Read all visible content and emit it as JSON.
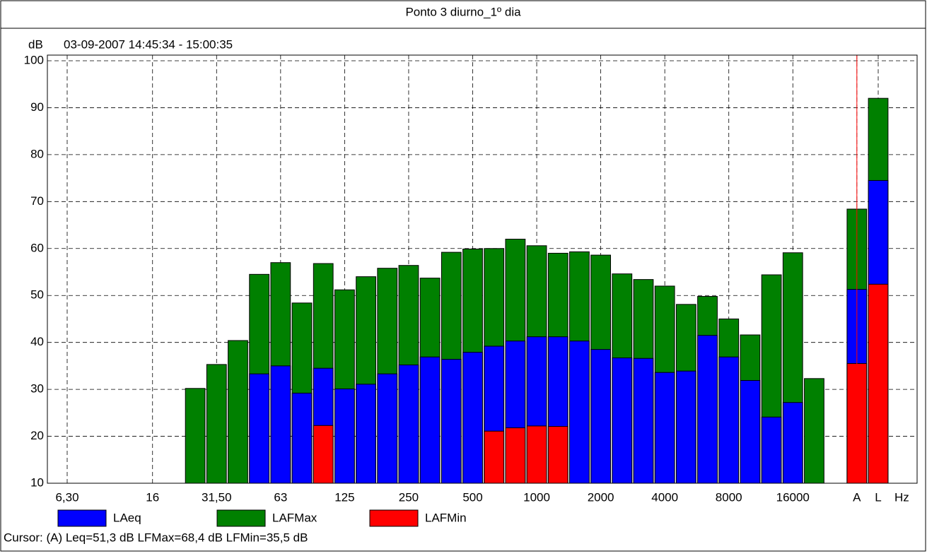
{
  "chart_data": {
    "type": "bar",
    "title": "Ponto 3 diurno_1º dia",
    "subtitle": "03-09-2007 14:45:34 - 15:00:35",
    "y_label": "dB",
    "x_label": "Hz",
    "categories": [
      "6,30",
      null,
      null,
      null,
      "16",
      null,
      null,
      "31,50",
      null,
      null,
      "63",
      null,
      null,
      "125",
      null,
      null,
      "250",
      null,
      null,
      "500",
      null,
      null,
      "1000",
      null,
      null,
      "2000",
      null,
      null,
      "4000",
      null,
      null,
      "8000",
      null,
      null,
      "16000",
      null,
      null,
      "A",
      "L"
    ],
    "series": [
      {
        "name": "LAFMax",
        "color": "#008000",
        "values": [
          null,
          null,
          null,
          null,
          null,
          null,
          30.2,
          35.3,
          40.4,
          54.5,
          57.0,
          48.4,
          56.8,
          51.2,
          54.0,
          55.8,
          56.4,
          53.7,
          59.2,
          59.9,
          60.0,
          62.0,
          60.6,
          59.0,
          59.3,
          58.6,
          54.6,
          53.4,
          52.0,
          48.1,
          49.8,
          45.0,
          41.6,
          54.4,
          59.1,
          32.3,
          null,
          68.4,
          92.0
        ]
      },
      {
        "name": "LAeq",
        "color": "#0000ff",
        "values": [
          null,
          null,
          null,
          null,
          null,
          null,
          null,
          null,
          null,
          33.3,
          35.0,
          29.2,
          34.5,
          30.1,
          31.1,
          33.3,
          35.2,
          36.9,
          36.4,
          37.9,
          39.2,
          40.3,
          41.2,
          41.2,
          40.3,
          38.5,
          36.7,
          36.6,
          33.6,
          33.9,
          41.5,
          36.9,
          31.9,
          24.1,
          27.2,
          null,
          null,
          51.3,
          74.5
        ]
      },
      {
        "name": "LAFMin",
        "color": "#ff0000",
        "values": [
          null,
          null,
          null,
          null,
          null,
          null,
          null,
          null,
          null,
          null,
          null,
          null,
          22.3,
          null,
          null,
          null,
          null,
          null,
          null,
          null,
          21.1,
          21.8,
          22.2,
          22.1,
          null,
          null,
          null,
          null,
          null,
          null,
          null,
          null,
          null,
          null,
          null,
          null,
          null,
          35.5,
          52.4
        ]
      }
    ],
    "legend_order": [
      "LAeq",
      "LAFMax",
      "LAFMin"
    ],
    "ylim": [
      10,
      100
    ],
    "yticks": [
      10,
      20,
      30,
      40,
      50,
      60,
      70,
      80,
      90,
      100
    ],
    "grid": true,
    "cursor_text": "Cursor: (A)  Leq=51,3 dB  LFMax=68,4 dB  LFMin=35,5 dB"
  }
}
